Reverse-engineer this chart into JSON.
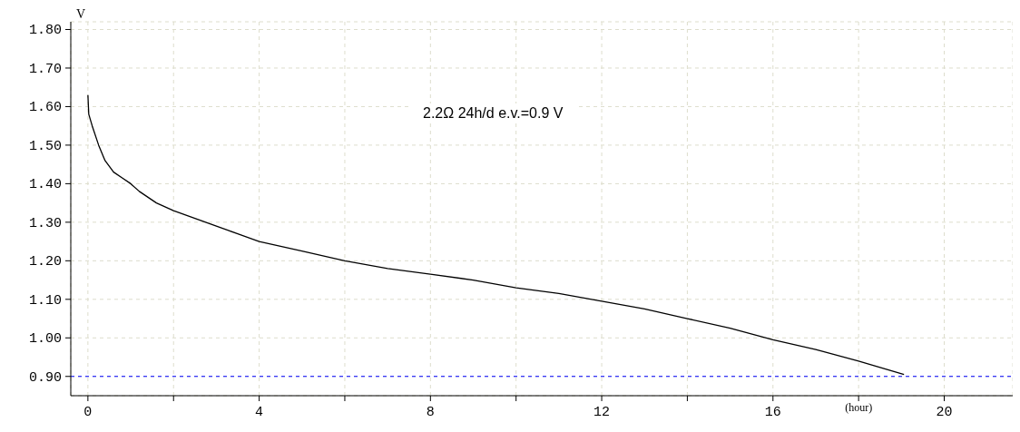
{
  "chart_data": {
    "type": "line",
    "xlabel": "(hour)",
    "ylabel": "V",
    "annotations": [
      "2.2Ω 24h/d e.v.=0.9 V"
    ],
    "x": [
      0,
      0.02,
      0.1,
      0.25,
      0.4,
      0.6,
      0.8,
      1.0,
      1.2,
      1.6,
      2,
      2.5,
      3,
      3.5,
      4,
      5,
      6,
      7,
      8,
      9,
      10,
      11,
      12,
      13,
      14,
      15,
      16,
      17,
      18,
      19.06
    ],
    "series": [
      {
        "color": "#000000",
        "values": [
          1.63,
          1.58,
          1.55,
          1.5,
          1.46,
          1.43,
          1.415,
          1.4,
          1.38,
          1.35,
          1.33,
          1.31,
          1.29,
          1.27,
          1.25,
          1.225,
          1.2,
          1.18,
          1.165,
          1.15,
          1.13,
          1.115,
          1.095,
          1.075,
          1.05,
          1.025,
          0.995,
          0.97,
          0.94,
          0.905
        ]
      }
    ],
    "xlim": [
      -0.4,
      21.6
    ],
    "ylim": [
      0.85,
      1.82
    ],
    "xticks": [
      0,
      {
        "value": 2,
        "label": null
      },
      4,
      {
        "value": 6,
        "label": null
      },
      8,
      {
        "value": 10,
        "label": null
      },
      12,
      {
        "value": 14,
        "label": null
      },
      16,
      {
        "value": 18,
        "label": null
      },
      20
    ],
    "yticks": [
      {
        "value": 0.9,
        "label": "0.90"
      },
      {
        "value": 1.0,
        "label": "1.00"
      },
      {
        "value": 1.1,
        "label": "1.10"
      },
      {
        "value": 1.2,
        "label": "1.20"
      },
      {
        "value": 1.3,
        "label": "1.30"
      },
      {
        "value": 1.4,
        "label": "1.40"
      },
      {
        "value": 1.5,
        "label": "1.50"
      },
      {
        "value": 1.6,
        "label": "1.60"
      },
      {
        "value": 1.7,
        "label": "1.70"
      },
      {
        "value": 1.8,
        "label": "1.80"
      }
    ],
    "ref_lines": [
      {
        "axis": "y",
        "value": 0.9,
        "color": "#0000ff",
        "line_style": "dashed"
      }
    ],
    "grid": true,
    "marker": "none",
    "line_style": "solid"
  }
}
